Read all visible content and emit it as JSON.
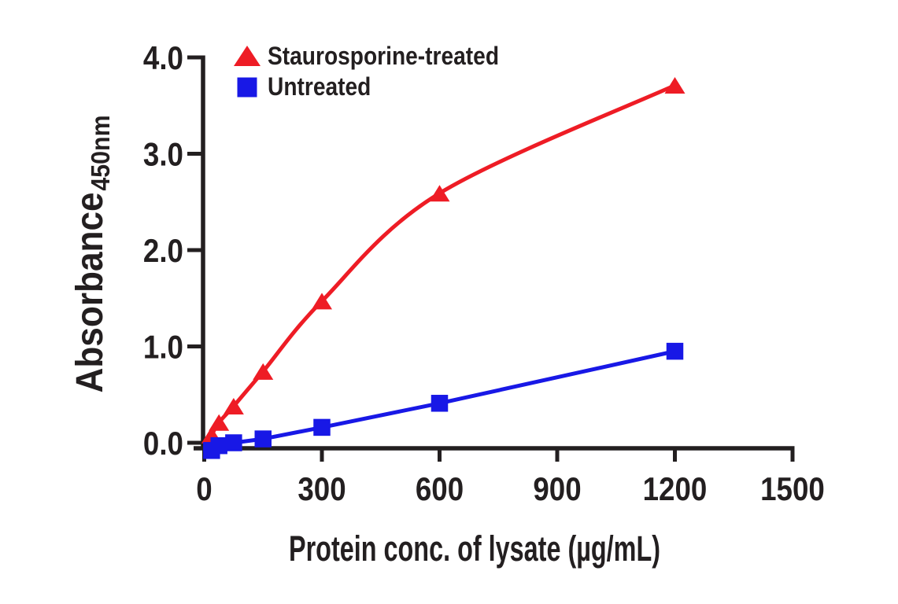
{
  "figure": {
    "background": "#ffffff",
    "axis_color": "#231f20"
  },
  "chart_data": {
    "type": "line",
    "title": "",
    "xlabel": "Protein conc. of lysate (µg/mL)",
    "ylabel": "Absorbance",
    "ylabel_subscript": "450nm",
    "xlim": [
      0,
      1500
    ],
    "ylim": [
      0,
      4
    ],
    "x_ticks": [
      0,
      300,
      600,
      900,
      1200,
      1500
    ],
    "x_tick_labels": [
      "0",
      "300",
      "600",
      "900",
      "1200",
      "1500"
    ],
    "y_ticks": [
      0,
      1,
      2,
      3,
      4
    ],
    "y_tick_labels": [
      "0.0",
      "1.0",
      "2.0",
      "3.0",
      "4.0"
    ],
    "grid": false,
    "legend_position": "top-left-inside",
    "series": [
      {
        "name": "Staurosporine-treated",
        "color": "#ee1c25",
        "marker": "triangle",
        "line": "smooth",
        "x": [
          18.75,
          37.5,
          75,
          150,
          300,
          600,
          1200
        ],
        "y": [
          0.08,
          0.21,
          0.38,
          0.74,
          1.47,
          2.59,
          3.71
        ]
      },
      {
        "name": "Untreated",
        "color": "#1818e6",
        "marker": "square",
        "line": "straight",
        "x": [
          18.75,
          37.5,
          75,
          150,
          300,
          600,
          1200
        ],
        "y": [
          -0.08,
          -0.03,
          0.0,
          0.04,
          0.16,
          0.41,
          0.95
        ]
      }
    ]
  }
}
